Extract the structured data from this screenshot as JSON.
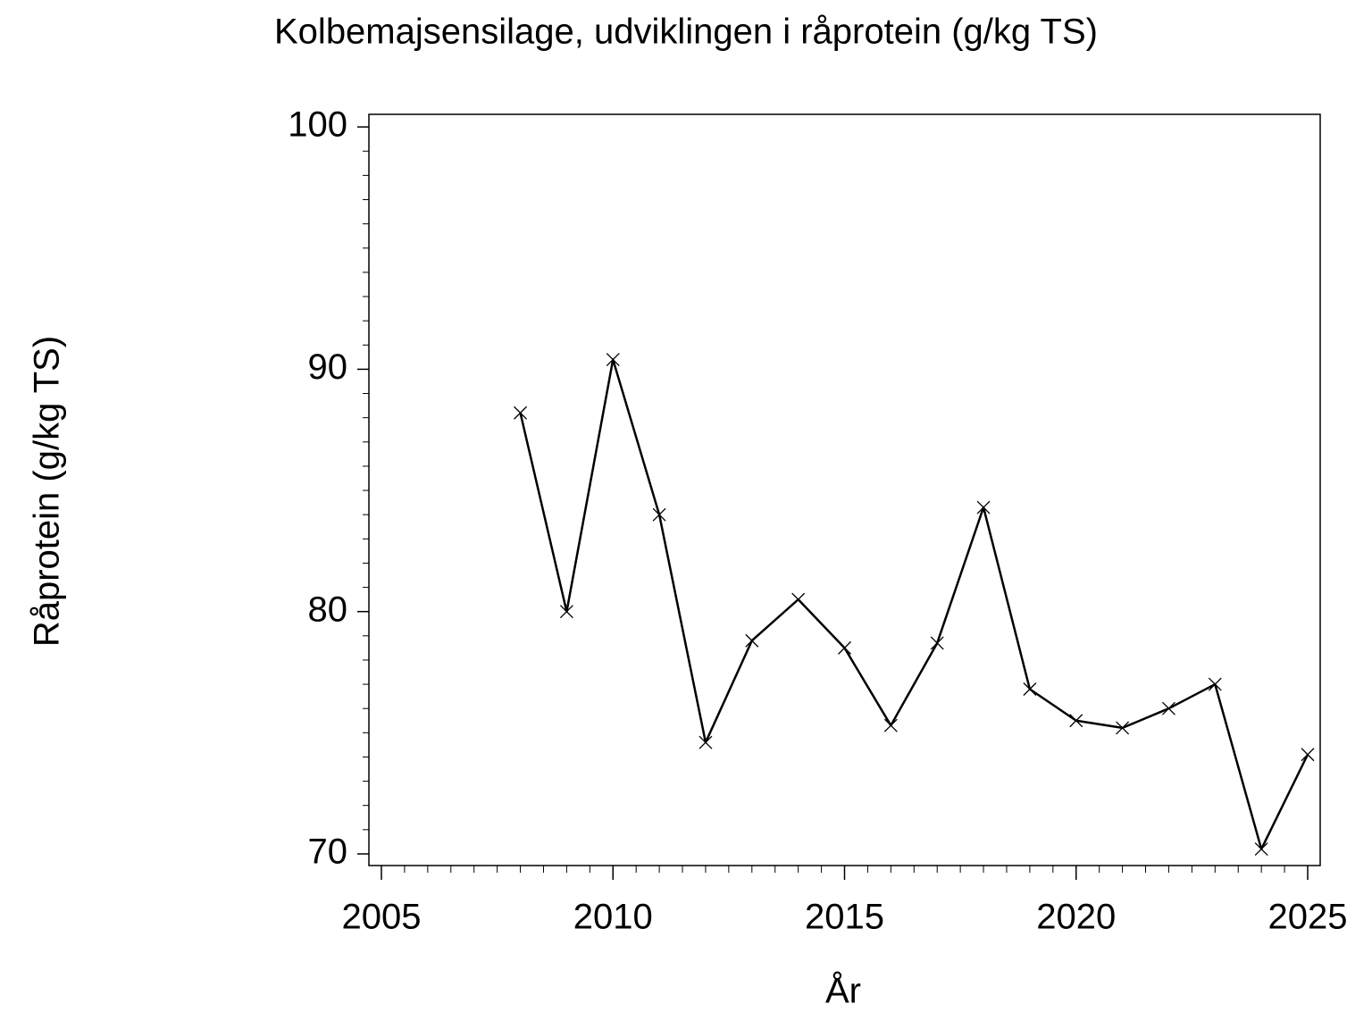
{
  "chart_data": {
    "type": "line",
    "title": "Kolbemajsensilage, udviklingen i råprotein (g/kg TS)",
    "x_label": "År",
    "y_label": "Råprotein (g/kg TS)",
    "x": [
      2008,
      2009,
      2010,
      2011,
      2012,
      2013,
      2014,
      2015,
      2016,
      2017,
      2018,
      2019,
      2020,
      2021,
      2022,
      2023,
      2024,
      2025
    ],
    "series": [
      {
        "color": "#000000",
        "values": [
          88.2,
          80.0,
          90.4,
          84.0,
          74.6,
          78.8,
          80.5,
          78.5,
          75.3,
          78.7,
          84.3,
          76.8,
          75.5,
          75.2,
          76.0,
          77.0,
          70.2,
          74.1
        ]
      }
    ],
    "xlim": [
      2004.73,
      2025.27
    ],
    "ylim": [
      69.52,
      100.52
    ],
    "xticks": [
      2005,
      2010,
      2015,
      2020,
      2025
    ],
    "yticks": [
      70,
      80,
      90,
      100
    ]
  }
}
